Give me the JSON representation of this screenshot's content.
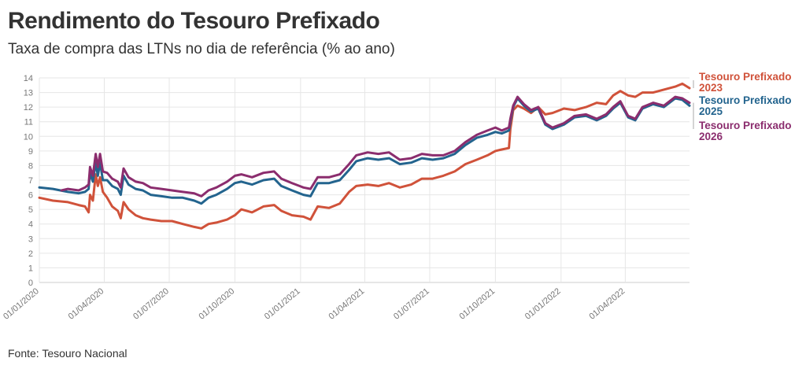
{
  "header": {
    "title": "Rendimento do Tesouro Prefixado",
    "subtitle": "Taxa de compra das LTNs no dia de referência (% ao ano)"
  },
  "footer": {
    "source": "Fonte: Tesouro Nacional"
  },
  "chart_data": {
    "type": "line",
    "title": "Rendimento do Tesouro Prefixado",
    "subtitle": "Taxa de compra das LTNs no dia de referência (% ao ano)",
    "xlabel": "",
    "ylabel": "",
    "x_range": [
      "2020-01-01",
      "2022-06-30"
    ],
    "ylim": [
      0,
      14
    ],
    "y_ticks": [
      0,
      1,
      2,
      3,
      4,
      5,
      6,
      7,
      8,
      9,
      10,
      11,
      12,
      13,
      14
    ],
    "x_ticks": [
      "01/01/2020",
      "01/04/2020",
      "01/07/2020",
      "01/10/2020",
      "01/01/2021",
      "01/04/2021",
      "01/07/2021",
      "01/10/2021",
      "01/01/2022",
      "01/04/2022"
    ],
    "grid": true,
    "legend": "direct labels at right end of lines",
    "series": [
      {
        "name": "Tesouro Prefixado 2023",
        "color": "#d0523a",
        "points": [
          [
            "2020-01-01",
            5.8
          ],
          [
            "2020-01-20",
            5.6
          ],
          [
            "2020-02-10",
            5.5
          ],
          [
            "2020-02-25",
            5.3
          ],
          [
            "2020-03-05",
            5.2
          ],
          [
            "2020-03-10",
            4.8
          ],
          [
            "2020-03-12",
            6.0
          ],
          [
            "2020-03-16",
            5.6
          ],
          [
            "2020-03-20",
            7.4
          ],
          [
            "2020-03-23",
            6.6
          ],
          [
            "2020-03-26",
            7.2
          ],
          [
            "2020-03-30",
            6.2
          ],
          [
            "2020-04-05",
            5.8
          ],
          [
            "2020-04-12",
            5.2
          ],
          [
            "2020-04-20",
            4.9
          ],
          [
            "2020-04-24",
            4.4
          ],
          [
            "2020-04-28",
            5.5
          ],
          [
            "2020-05-05",
            5.0
          ],
          [
            "2020-05-15",
            4.6
          ],
          [
            "2020-05-25",
            4.4
          ],
          [
            "2020-06-05",
            4.3
          ],
          [
            "2020-06-20",
            4.2
          ],
          [
            "2020-07-05",
            4.2
          ],
          [
            "2020-07-20",
            4.0
          ],
          [
            "2020-08-05",
            3.8
          ],
          [
            "2020-08-15",
            3.7
          ],
          [
            "2020-08-25",
            4.0
          ],
          [
            "2020-09-05",
            4.1
          ],
          [
            "2020-09-20",
            4.3
          ],
          [
            "2020-10-01",
            4.6
          ],
          [
            "2020-10-10",
            5.0
          ],
          [
            "2020-10-25",
            4.8
          ],
          [
            "2020-11-10",
            5.2
          ],
          [
            "2020-11-25",
            5.3
          ],
          [
            "2020-12-05",
            4.9
          ],
          [
            "2020-12-20",
            4.6
          ],
          [
            "2021-01-05",
            4.5
          ],
          [
            "2021-01-15",
            4.3
          ],
          [
            "2021-01-25",
            5.2
          ],
          [
            "2021-02-10",
            5.1
          ],
          [
            "2021-02-25",
            5.4
          ],
          [
            "2021-03-10",
            6.2
          ],
          [
            "2021-03-20",
            6.6
          ],
          [
            "2021-04-05",
            6.7
          ],
          [
            "2021-04-20",
            6.6
          ],
          [
            "2021-05-05",
            6.8
          ],
          [
            "2021-05-20",
            6.5
          ],
          [
            "2021-06-05",
            6.7
          ],
          [
            "2021-06-20",
            7.1
          ],
          [
            "2021-07-05",
            7.1
          ],
          [
            "2021-07-20",
            7.3
          ],
          [
            "2021-08-05",
            7.6
          ],
          [
            "2021-08-20",
            8.1
          ],
          [
            "2021-09-05",
            8.4
          ],
          [
            "2021-09-20",
            8.7
          ],
          [
            "2021-10-01",
            9.0
          ],
          [
            "2021-10-10",
            9.1
          ],
          [
            "2021-10-20",
            9.2
          ],
          [
            "2021-10-22",
            10.5
          ],
          [
            "2021-10-26",
            11.8
          ],
          [
            "2021-11-01",
            12.1
          ],
          [
            "2021-11-10",
            11.9
          ],
          [
            "2021-11-20",
            11.6
          ],
          [
            "2021-11-30",
            12.0
          ],
          [
            "2021-12-10",
            11.5
          ],
          [
            "2021-12-20",
            11.6
          ],
          [
            "2022-01-05",
            11.9
          ],
          [
            "2022-01-20",
            11.8
          ],
          [
            "2022-02-05",
            12.0
          ],
          [
            "2022-02-20",
            12.3
          ],
          [
            "2022-03-05",
            12.2
          ],
          [
            "2022-03-15",
            12.8
          ],
          [
            "2022-03-25",
            13.1
          ],
          [
            "2022-04-05",
            12.8
          ],
          [
            "2022-04-15",
            12.7
          ],
          [
            "2022-04-25",
            13.0
          ],
          [
            "2022-05-10",
            13.0
          ],
          [
            "2022-05-25",
            13.2
          ],
          [
            "2022-06-10",
            13.4
          ],
          [
            "2022-06-20",
            13.6
          ],
          [
            "2022-06-30",
            13.3
          ]
        ]
      },
      {
        "name": "Tesouro Prefixado 2025",
        "color": "#23648e",
        "points": [
          [
            "2020-01-01",
            6.5
          ],
          [
            "2020-01-20",
            6.4
          ],
          [
            "2020-02-10",
            6.2
          ],
          [
            "2020-02-25",
            6.1
          ],
          [
            "2020-03-05",
            6.2
          ],
          [
            "2020-03-10",
            6.4
          ],
          [
            "2020-03-12",
            7.5
          ],
          [
            "2020-03-16",
            6.9
          ],
          [
            "2020-03-20",
            8.2
          ],
          [
            "2020-03-23",
            7.3
          ],
          [
            "2020-03-26",
            8.2
          ],
          [
            "2020-03-30",
            7.0
          ],
          [
            "2020-04-05",
            7.0
          ],
          [
            "2020-04-12",
            6.6
          ],
          [
            "2020-04-20",
            6.4
          ],
          [
            "2020-04-24",
            6.0
          ],
          [
            "2020-04-28",
            7.3
          ],
          [
            "2020-05-05",
            6.7
          ],
          [
            "2020-05-15",
            6.4
          ],
          [
            "2020-05-25",
            6.3
          ],
          [
            "2020-06-05",
            6.0
          ],
          [
            "2020-06-20",
            5.9
          ],
          [
            "2020-07-05",
            5.8
          ],
          [
            "2020-07-20",
            5.8
          ],
          [
            "2020-08-05",
            5.6
          ],
          [
            "2020-08-15",
            5.4
          ],
          [
            "2020-08-25",
            5.8
          ],
          [
            "2020-09-05",
            6.0
          ],
          [
            "2020-09-20",
            6.4
          ],
          [
            "2020-10-01",
            6.8
          ],
          [
            "2020-10-10",
            6.9
          ],
          [
            "2020-10-25",
            6.7
          ],
          [
            "2020-11-10",
            7.0
          ],
          [
            "2020-11-25",
            7.1
          ],
          [
            "2020-12-05",
            6.6
          ],
          [
            "2020-12-20",
            6.3
          ],
          [
            "2021-01-05",
            6.0
          ],
          [
            "2021-01-15",
            5.9
          ],
          [
            "2021-01-25",
            6.8
          ],
          [
            "2021-02-10",
            6.8
          ],
          [
            "2021-02-25",
            7.0
          ],
          [
            "2021-03-10",
            7.7
          ],
          [
            "2021-03-20",
            8.3
          ],
          [
            "2021-04-05",
            8.5
          ],
          [
            "2021-04-20",
            8.4
          ],
          [
            "2021-05-05",
            8.5
          ],
          [
            "2021-05-20",
            8.1
          ],
          [
            "2021-06-05",
            8.2
          ],
          [
            "2021-06-20",
            8.5
          ],
          [
            "2021-07-05",
            8.4
          ],
          [
            "2021-07-20",
            8.5
          ],
          [
            "2021-08-05",
            8.8
          ],
          [
            "2021-08-20",
            9.4
          ],
          [
            "2021-09-05",
            9.9
          ],
          [
            "2021-09-20",
            10.1
          ],
          [
            "2021-10-01",
            10.3
          ],
          [
            "2021-10-10",
            10.2
          ],
          [
            "2021-10-20",
            10.4
          ],
          [
            "2021-10-22",
            11.0
          ],
          [
            "2021-10-26",
            12.0
          ],
          [
            "2021-11-01",
            12.6
          ],
          [
            "2021-11-10",
            12.1
          ],
          [
            "2021-11-20",
            11.7
          ],
          [
            "2021-11-30",
            11.9
          ],
          [
            "2021-12-10",
            10.8
          ],
          [
            "2021-12-20",
            10.5
          ],
          [
            "2022-01-05",
            10.8
          ],
          [
            "2022-01-20",
            11.3
          ],
          [
            "2022-02-05",
            11.4
          ],
          [
            "2022-02-20",
            11.1
          ],
          [
            "2022-03-05",
            11.4
          ],
          [
            "2022-03-15",
            11.9
          ],
          [
            "2022-03-25",
            12.3
          ],
          [
            "2022-04-05",
            11.3
          ],
          [
            "2022-04-15",
            11.1
          ],
          [
            "2022-04-25",
            11.9
          ],
          [
            "2022-05-10",
            12.2
          ],
          [
            "2022-05-25",
            12.0
          ],
          [
            "2022-06-10",
            12.6
          ],
          [
            "2022-06-20",
            12.5
          ],
          [
            "2022-06-30",
            12.1
          ]
        ]
      },
      {
        "name": "Tesouro Prefixado 2026",
        "color": "#8b2d6e",
        "points": [
          [
            "2020-02-01",
            6.3
          ],
          [
            "2020-02-10",
            6.4
          ],
          [
            "2020-02-25",
            6.3
          ],
          [
            "2020-03-05",
            6.5
          ],
          [
            "2020-03-10",
            6.7
          ],
          [
            "2020-03-12",
            7.9
          ],
          [
            "2020-03-16",
            7.3
          ],
          [
            "2020-03-20",
            8.8
          ],
          [
            "2020-03-23",
            7.9
          ],
          [
            "2020-03-26",
            8.8
          ],
          [
            "2020-03-30",
            7.6
          ],
          [
            "2020-04-05",
            7.5
          ],
          [
            "2020-04-12",
            7.1
          ],
          [
            "2020-04-20",
            6.9
          ],
          [
            "2020-04-24",
            6.5
          ],
          [
            "2020-04-28",
            7.8
          ],
          [
            "2020-05-05",
            7.2
          ],
          [
            "2020-05-15",
            6.9
          ],
          [
            "2020-05-25",
            6.8
          ],
          [
            "2020-06-05",
            6.5
          ],
          [
            "2020-06-20",
            6.4
          ],
          [
            "2020-07-05",
            6.3
          ],
          [
            "2020-07-20",
            6.2
          ],
          [
            "2020-08-05",
            6.1
          ],
          [
            "2020-08-15",
            5.9
          ],
          [
            "2020-08-25",
            6.3
          ],
          [
            "2020-09-05",
            6.5
          ],
          [
            "2020-09-20",
            6.9
          ],
          [
            "2020-10-01",
            7.3
          ],
          [
            "2020-10-10",
            7.4
          ],
          [
            "2020-10-25",
            7.2
          ],
          [
            "2020-11-10",
            7.5
          ],
          [
            "2020-11-25",
            7.6
          ],
          [
            "2020-12-05",
            7.1
          ],
          [
            "2020-12-20",
            6.8
          ],
          [
            "2021-01-05",
            6.5
          ],
          [
            "2021-01-15",
            6.4
          ],
          [
            "2021-01-25",
            7.2
          ],
          [
            "2021-02-10",
            7.2
          ],
          [
            "2021-02-25",
            7.4
          ],
          [
            "2021-03-10",
            8.1
          ],
          [
            "2021-03-20",
            8.7
          ],
          [
            "2021-04-05",
            8.9
          ],
          [
            "2021-04-20",
            8.8
          ],
          [
            "2021-05-05",
            8.9
          ],
          [
            "2021-05-20",
            8.4
          ],
          [
            "2021-06-05",
            8.5
          ],
          [
            "2021-06-20",
            8.8
          ],
          [
            "2021-07-05",
            8.7
          ],
          [
            "2021-07-20",
            8.7
          ],
          [
            "2021-08-05",
            9.0
          ],
          [
            "2021-08-20",
            9.6
          ],
          [
            "2021-09-05",
            10.1
          ],
          [
            "2021-09-20",
            10.4
          ],
          [
            "2021-10-01",
            10.6
          ],
          [
            "2021-10-10",
            10.4
          ],
          [
            "2021-10-20",
            10.6
          ],
          [
            "2021-10-22",
            11.2
          ],
          [
            "2021-10-26",
            12.1
          ],
          [
            "2021-11-01",
            12.7
          ],
          [
            "2021-11-10",
            12.2
          ],
          [
            "2021-11-20",
            11.8
          ],
          [
            "2021-11-30",
            12.0
          ],
          [
            "2021-12-10",
            10.9
          ],
          [
            "2021-12-20",
            10.6
          ],
          [
            "2022-01-05",
            10.9
          ],
          [
            "2022-01-20",
            11.4
          ],
          [
            "2022-02-05",
            11.5
          ],
          [
            "2022-02-20",
            11.2
          ],
          [
            "2022-03-05",
            11.5
          ],
          [
            "2022-03-15",
            12.0
          ],
          [
            "2022-03-25",
            12.4
          ],
          [
            "2022-04-05",
            11.4
          ],
          [
            "2022-04-15",
            11.2
          ],
          [
            "2022-04-25",
            12.0
          ],
          [
            "2022-05-10",
            12.3
          ],
          [
            "2022-05-25",
            12.1
          ],
          [
            "2022-06-10",
            12.7
          ],
          [
            "2022-06-20",
            12.6
          ],
          [
            "2022-06-30",
            12.3
          ]
        ]
      }
    ],
    "labels": [
      {
        "series": 0,
        "line1": "Tesouro Prefixado",
        "line2": "2023"
      },
      {
        "series": 1,
        "line1": "Tesouro Prefixado",
        "line2": "2025"
      },
      {
        "series": 2,
        "line1": "Tesouro Prefixado",
        "line2": "2026"
      }
    ]
  }
}
